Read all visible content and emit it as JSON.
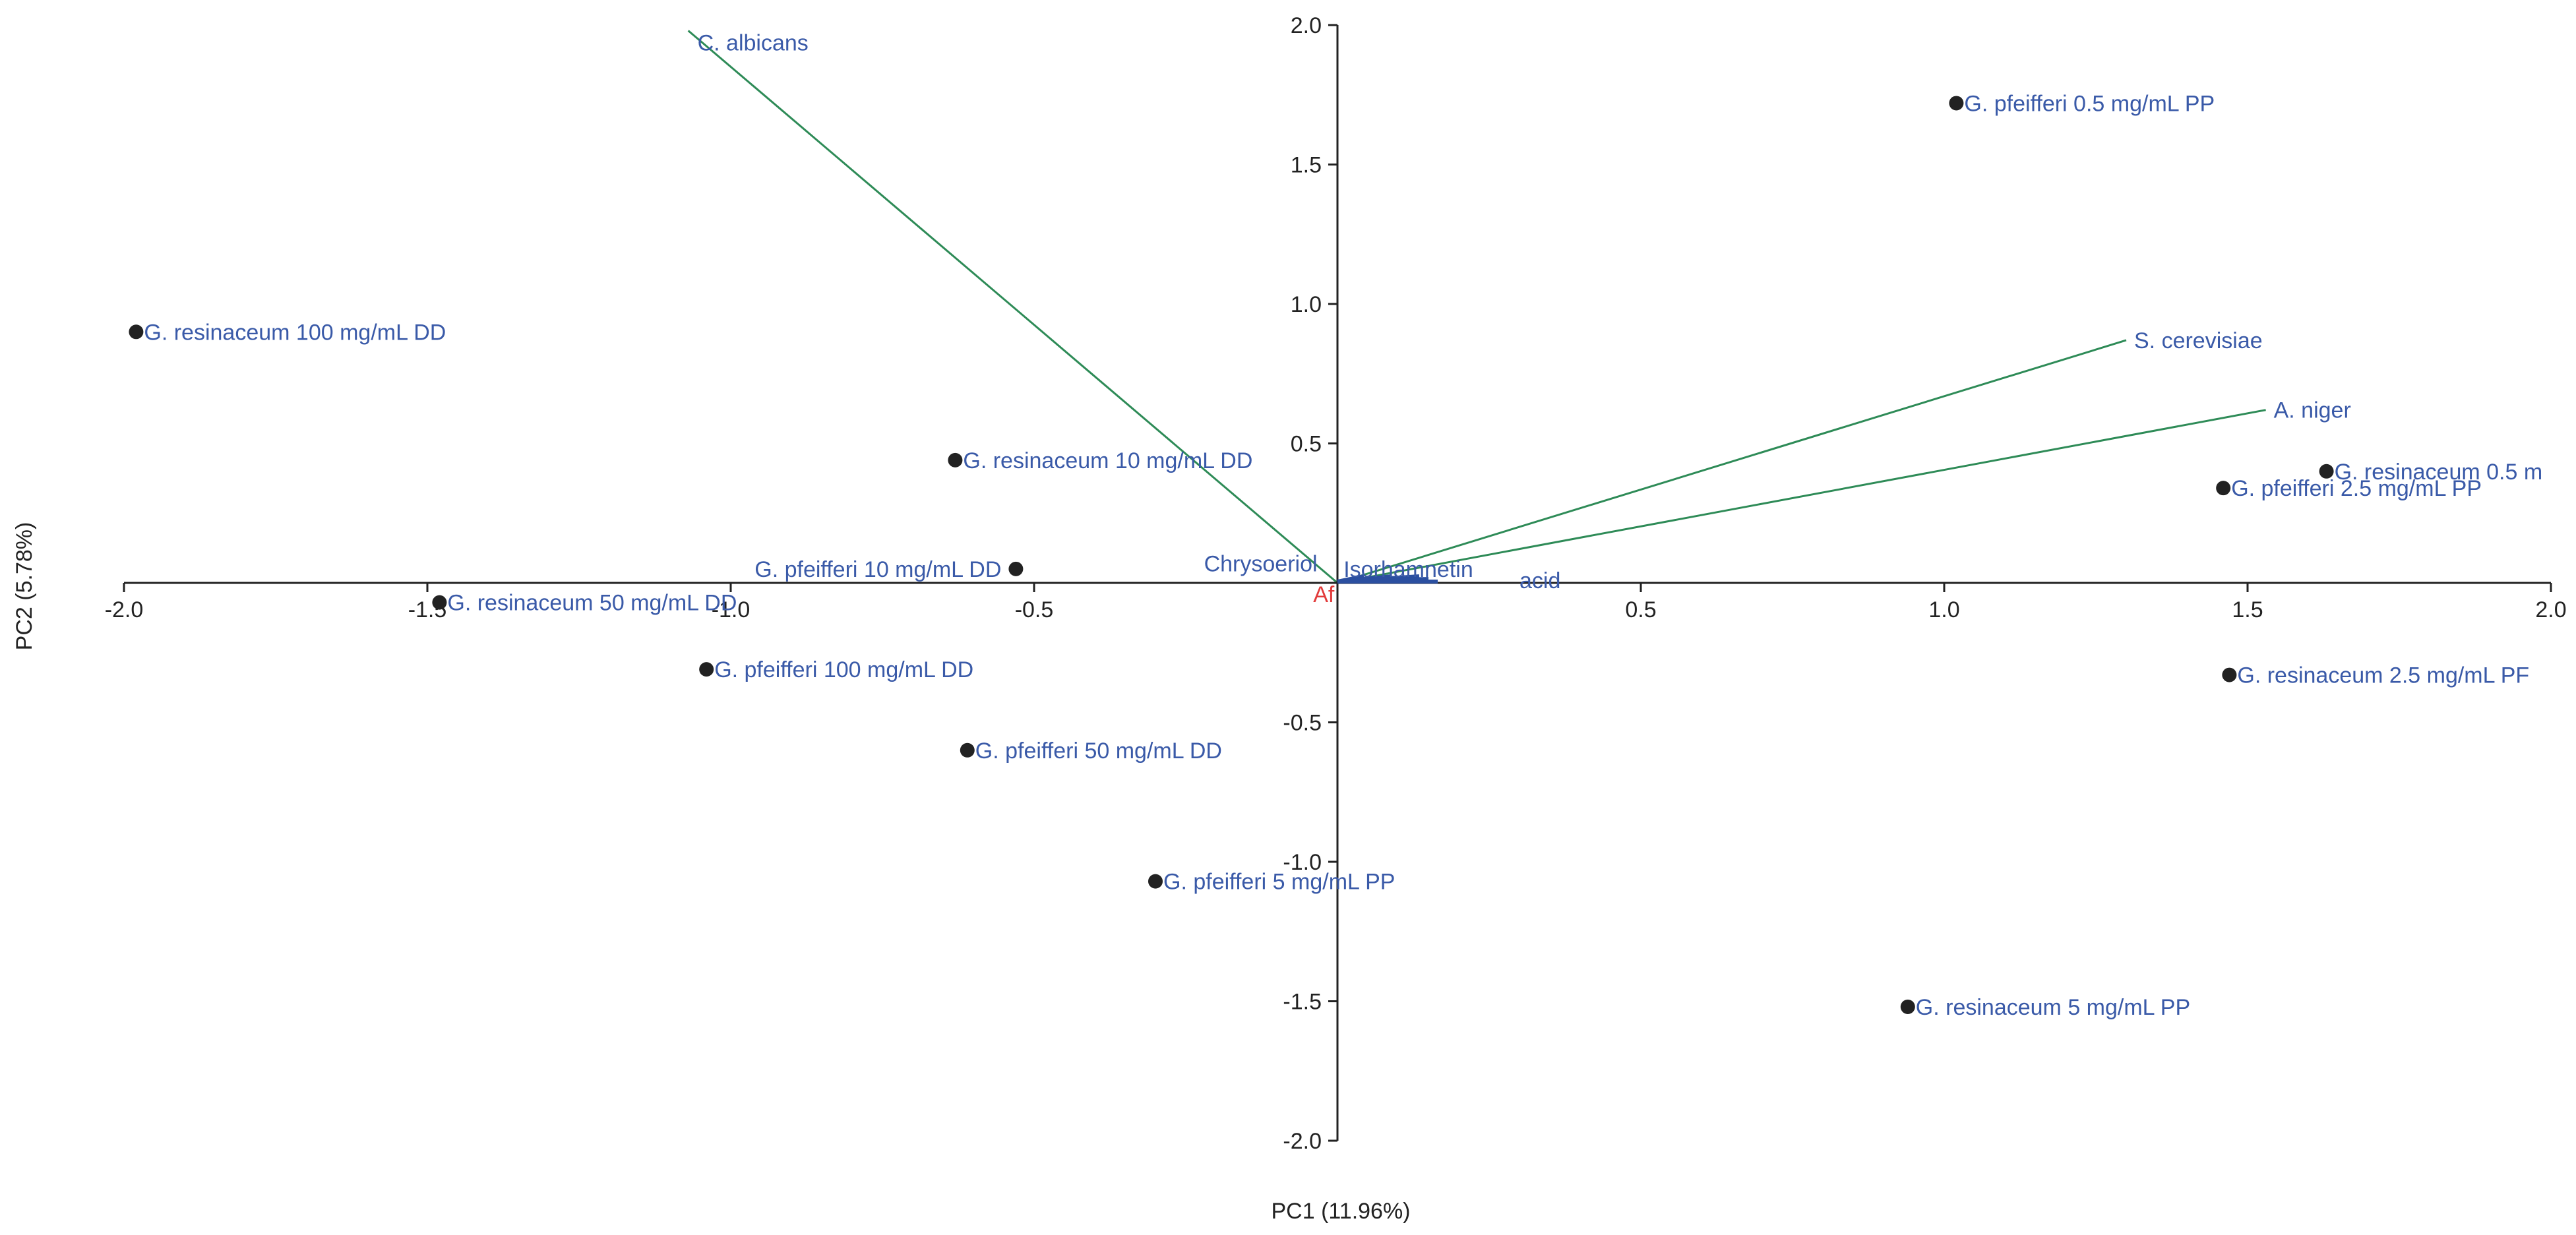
{
  "chart_data": {
    "type": "scatter",
    "subtype": "pca-biplot",
    "title": "",
    "xlabel": "PC1 (11.96%)",
    "ylabel": "PC2 (5.78%)",
    "xlim": [
      -2.0,
      2.0
    ],
    "ylim": [
      -2.0,
      2.0
    ],
    "x_ticks": [
      -2.0,
      -1.5,
      -1.0,
      -0.5,
      0.5,
      1.0,
      1.5,
      2.0
    ],
    "x_tick_labels": [
      "-2.0",
      "-1.5",
      "-1.0",
      "-0.5",
      "0.5",
      "1.0",
      "1.5",
      "2.0"
    ],
    "y_ticks": [
      2.0,
      1.5,
      1.0,
      0.5,
      -0.5,
      -1.0,
      -1.5,
      -2.0
    ],
    "y_tick_labels": [
      "2.0",
      "1.5",
      "1.0",
      "0.5",
      "-0.5",
      "-1.0",
      "-1.5",
      "-2.0"
    ],
    "grid": false,
    "colors": {
      "point": "#222222",
      "label": "#3a5aa8",
      "vector": "#2e8b57",
      "origin_label": "#e23a3a",
      "axis": "#222222"
    },
    "points": [
      {
        "name": "G. pfeifferi 0.5 mg/mL PP",
        "x": 1.02,
        "y": 1.72
      },
      {
        "name": "G. resinaceum 100 mg/mL DD",
        "x": -1.98,
        "y": 0.9
      },
      {
        "name": "G. resinaceum 10 mg/mL DD",
        "x": -0.63,
        "y": 0.44
      },
      {
        "name": "G. pfeifferi 10 mg/mL DD",
        "x": -0.53,
        "y": 0.05,
        "label_side": "left"
      },
      {
        "name": "G. resinaceum 50 mg/mL DD",
        "x": -1.48,
        "y": -0.07
      },
      {
        "name": "G. pfeifferi 100 mg/mL DD",
        "x": -1.04,
        "y": -0.31
      },
      {
        "name": "G. pfeifferi 50 mg/mL DD",
        "x": -0.61,
        "y": -0.6
      },
      {
        "name": "G. pfeifferi 5 mg/mL PP",
        "x": -0.3,
        "y": -1.07
      },
      {
        "name": "G. resinaceum 5 mg/mL PP",
        "x": 0.94,
        "y": -1.52
      },
      {
        "name": "G. resinaceum 0.5 m",
        "x": 1.63,
        "y": 0.4
      },
      {
        "name": "G. pfeifferi 2.5 mg/mL PP",
        "x": 1.46,
        "y": 0.34
      },
      {
        "name": "G. resinaceum 2.5 mg/mL PF",
        "x": 1.47,
        "y": -0.33
      }
    ],
    "vectors": [
      {
        "name": "C. albicans",
        "x": -1.07,
        "y": 1.98
      },
      {
        "name": "S. cerevisiae",
        "x": 1.3,
        "y": 0.87
      },
      {
        "name": "A. niger",
        "x": 1.53,
        "y": 0.62
      }
    ],
    "minor_labels": [
      {
        "name": "Chrysoeriol",
        "x": -0.22,
        "y": 0.07
      },
      {
        "name": "Isorhamnetin",
        "x": 0.01,
        "y": 0.05
      },
      {
        "name": "acid",
        "x": 0.3,
        "y": 0.01
      },
      {
        "name": "Af",
        "x": -0.04,
        "y": -0.04,
        "color_key": "origin_label"
      }
    ]
  }
}
